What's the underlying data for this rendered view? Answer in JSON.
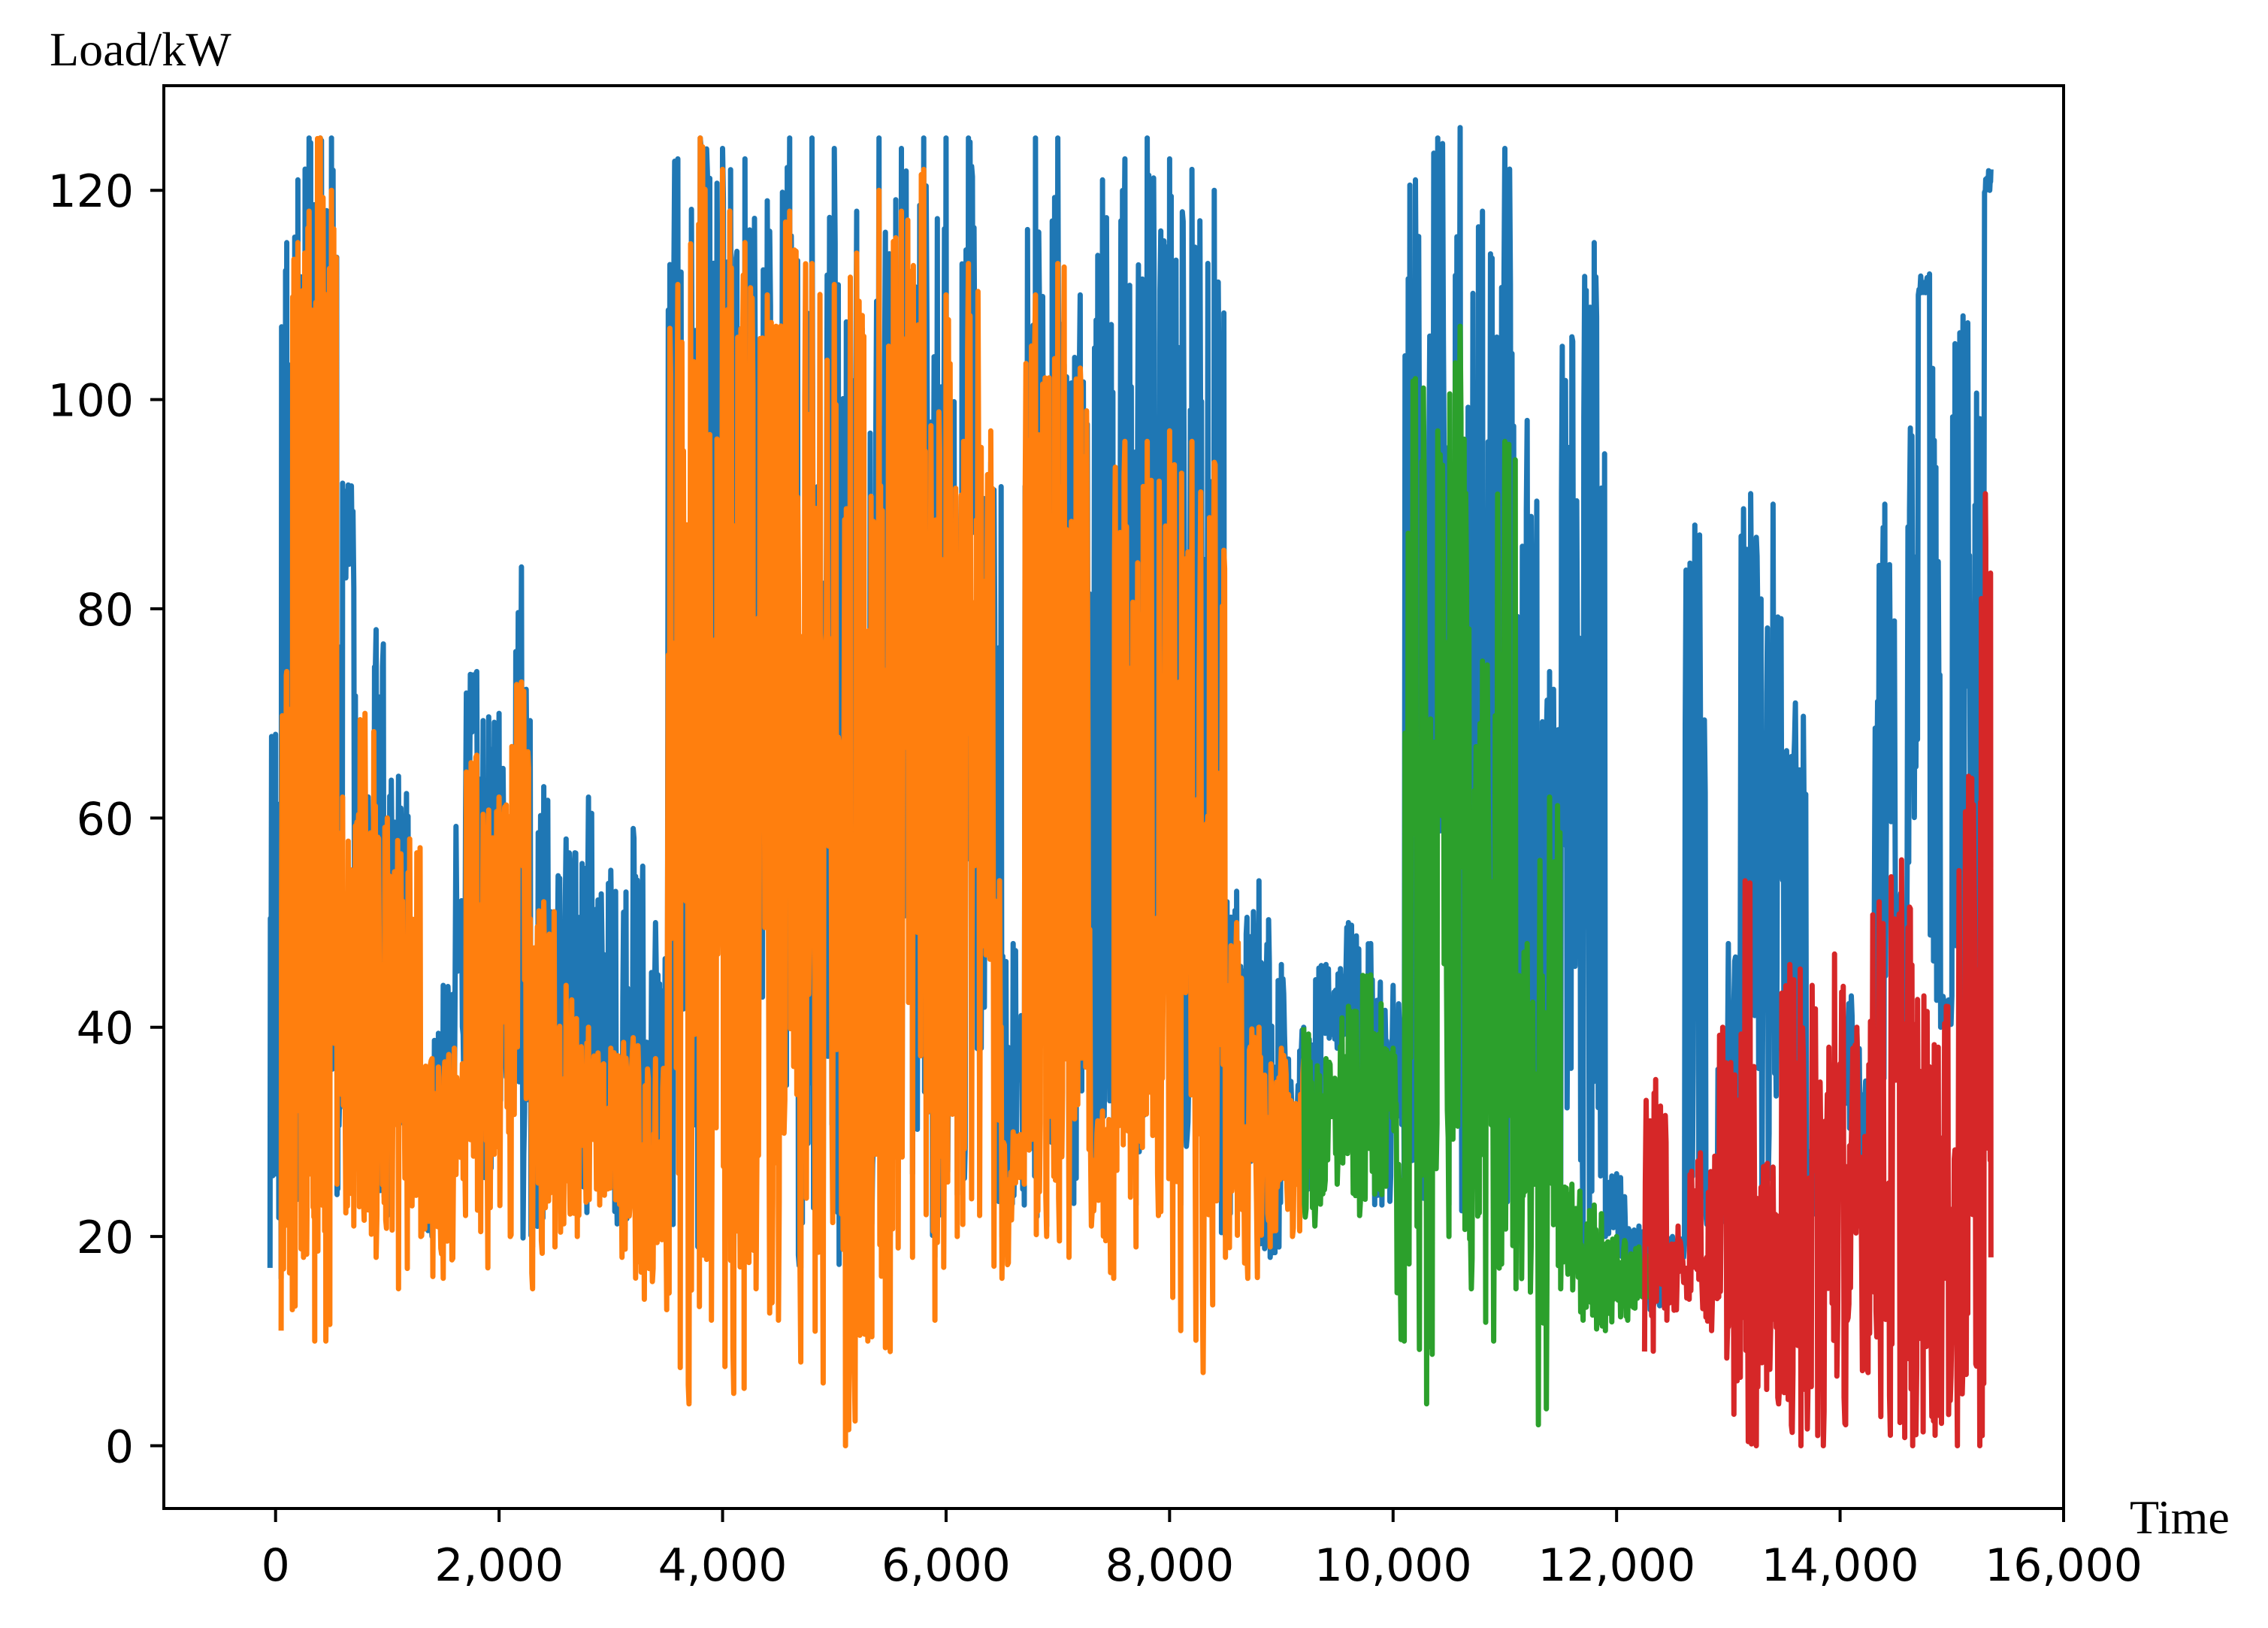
{
  "chart_data": {
    "type": "line",
    "title": "",
    "xlabel": "Time",
    "ylabel": "Load/kW",
    "xlim": [
      -1000,
      16000
    ],
    "ylim": [
      -6,
      130
    ],
    "x_ticks": [
      0,
      2000,
      4000,
      6000,
      8000,
      10000,
      12000,
      14000,
      16000
    ],
    "x_tick_labels": [
      "0",
      "2,000",
      "4,000",
      "6,000",
      "8,000",
      "10,000",
      "12,000",
      "14,000",
      "16,000"
    ],
    "y_ticks": [
      0,
      20,
      40,
      60,
      80,
      100,
      120
    ],
    "y_tick_labels": [
      "0",
      "20",
      "40",
      "60",
      "80",
      "100",
      "120"
    ],
    "grid": false,
    "legend": "none",
    "series": [
      {
        "color": "#1f77b4",
        "x": [
          -50,
          0,
          50,
          100,
          150,
          200,
          250,
          300,
          350,
          400,
          450,
          500,
          550,
          600,
          700,
          800,
          900,
          1000,
          1100,
          1200,
          1300,
          1400,
          1500,
          1600,
          1700,
          1800,
          1900,
          2000,
          2100,
          2200,
          2300,
          2400,
          2500,
          2600,
          2700,
          2800,
          2900,
          3000,
          3100,
          3200,
          3300,
          3400,
          3500,
          3600,
          3700,
          3800,
          3900,
          4000,
          4100,
          4200,
          4300,
          4400,
          4500,
          4600,
          4700,
          4800,
          4900,
          5000,
          5100,
          5200,
          5300,
          5400,
          5500,
          5600,
          5700,
          5800,
          5900,
          6000,
          6100,
          6200,
          6300,
          6400,
          6500,
          6600,
          6700,
          6800,
          6900,
          7000,
          7100,
          7200,
          7300,
          7400,
          7500,
          7600,
          7700,
          7800,
          7900,
          8000,
          8100,
          8200,
          8300,
          8400,
          8500,
          8600,
          8700,
          8800,
          8900,
          9000,
          9100,
          9200,
          9300,
          9400,
          9500,
          9600,
          9700,
          9800,
          9900,
          10000,
          10100,
          10200,
          10300,
          10400,
          10500,
          10600,
          10700,
          10800,
          10900,
          11000,
          11100,
          11200,
          11300,
          11400,
          11500,
          11600,
          11700,
          11800,
          11900,
          12000,
          12100,
          12200,
          12300,
          12400,
          12500,
          12600,
          12700,
          12800,
          12900,
          13000,
          13100,
          13200,
          13300,
          13400,
          13500,
          13600,
          13700,
          13800,
          13900,
          14000,
          14100,
          14200,
          14300,
          14400,
          14500,
          14600,
          14700,
          14800,
          14900,
          15000,
          15100,
          15200,
          15300,
          15350
        ],
        "y": [
          17,
          68,
          16,
          115,
          23,
          121,
          60,
          125,
          28,
          125,
          40,
          125,
          24,
          92,
          82,
          25,
          78,
          22,
          64,
          30,
          29,
          20,
          44,
          32,
          60,
          74,
          24,
          70,
          32,
          84,
          19,
          63,
          29,
          58,
          22,
          62,
          24,
          55,
          21,
          59,
          19,
          50,
          19,
          123,
          18,
          125,
          30,
          124,
          17,
          123,
          33,
          119,
          32,
          125,
          17,
          125,
          20,
          124,
          16,
          118,
          20,
          125,
          20,
          124,
          26,
          125,
          18,
          125,
          24,
          125,
          33,
          94,
          20,
          48,
          23,
          125,
          21,
          125,
          23,
          110,
          24,
          121,
          25,
          123,
          23,
          125,
          30,
          123,
          23,
          122,
          32,
          120,
          20,
          53,
          22,
          54,
          18,
          46,
          25,
          40,
          24,
          46,
          38,
          50,
          27,
          48,
          23,
          44,
          25,
          121,
          22,
          125,
          23,
          126,
          22,
          118,
          25,
          124,
          23,
          98,
          25,
          74,
          22,
          106,
          18,
          115,
          20,
          26,
          18,
          21,
          13,
          16,
          20,
          18,
          88,
          22,
          21,
          48,
          24,
          91,
          22,
          90,
          24,
          71,
          22,
          29,
          28,
          30,
          43,
          22,
          35,
          90,
          38,
          55,
          110,
          112,
          40,
          43,
          108,
          30,
          120,
          122
        ],
        "segments": [
          [
            -50,
            15350
          ]
        ]
      },
      {
        "color": "#ff7f0e",
        "x": [
          50,
          100,
          150,
          200,
          250,
          300,
          350,
          400,
          450,
          500,
          550,
          600,
          700,
          800,
          900,
          1000,
          1100,
          1200,
          1300,
          1400,
          1500,
          1600,
          1700,
          1800,
          1900,
          2000,
          2100,
          2200,
          2300,
          2400,
          2500,
          2600,
          2700,
          2800,
          2900,
          3000,
          3100,
          3200,
          3300,
          3400,
          3500,
          3600,
          3700,
          3800,
          3900,
          4000,
          4100,
          4200,
          4300,
          4400,
          4500,
          4600,
          4700,
          4800,
          4900,
          5000,
          5100,
          5200,
          5300,
          5400,
          5500,
          5600,
          5700,
          5800,
          5900,
          6000,
          6100,
          6200,
          6300,
          6400,
          6500,
          6600,
          6700,
          6800,
          6900,
          7000,
          7100,
          7200,
          7300,
          7400,
          7500,
          7600,
          7700,
          7800,
          7900,
          8000,
          8100,
          8200,
          8300,
          8400,
          8500,
          8600,
          8700,
          8800,
          8900,
          9000,
          9100,
          9200
        ],
        "y": [
          11,
          74,
          13,
          115,
          18,
          118,
          10,
          125,
          10,
          120,
          25,
          62,
          21,
          70,
          18,
          60,
          15,
          58,
          20,
          37,
          16,
          38,
          22,
          66,
          17,
          62,
          20,
          73,
          15,
          52,
          19,
          44,
          20,
          40,
          23,
          38,
          18,
          39,
          14,
          37,
          13,
          111,
          4,
          125,
          12,
          122,
          5,
          115,
          15,
          110,
          12,
          118,
          8,
          113,
          6,
          111,
          0,
          114,
          10,
          120,
          9,
          118,
          18,
          122,
          12,
          110,
          20,
          113,
          22,
          97,
          16,
          30,
          25,
          110,
          20,
          113,
          18,
          103,
          21,
          32,
          16,
          96,
          19,
          96,
          22,
          97,
          11,
          96,
          7,
          94,
          18,
          50,
          16,
          40,
          19,
          38,
          20,
          37
        ],
        "segments": [
          [
            50,
            9200
          ]
        ]
      },
      {
        "color": "#2ca02c",
        "x": [
          9200,
          9300,
          9400,
          9500,
          9600,
          9700,
          9800,
          9900,
          10000,
          10100,
          10200,
          10300,
          10400,
          10500,
          10600,
          10700,
          10800,
          10900,
          11000,
          11100,
          11200,
          11300,
          11400,
          11500,
          11600,
          11700,
          11800,
          11900,
          12000,
          12100,
          12200,
          12300
        ],
        "y": [
          40,
          21,
          37,
          25,
          42,
          22,
          45,
          24,
          38,
          10,
          102,
          4,
          97,
          20,
          107,
          15,
          75,
          10,
          96,
          15,
          48,
          2,
          62,
          15,
          25,
          12,
          23,
          11,
          20,
          12,
          19,
          14
        ],
        "segments": [
          [
            9200,
            12300
          ]
        ]
      },
      {
        "color": "#d62728",
        "x": [
          12250,
          12350,
          12450,
          12550,
          12650,
          12750,
          12850,
          12950,
          13050,
          13150,
          13250,
          13350,
          13450,
          13550,
          13650,
          13750,
          13850,
          13950,
          14050,
          14150,
          14250,
          14350,
          14450,
          14550,
          14650,
          14750,
          14850,
          14950,
          15050,
          15150,
          15250,
          15300,
          15350
        ],
        "y": [
          9,
          35,
          12,
          21,
          14,
          28,
          11,
          40,
          3,
          54,
          0,
          27,
          4,
          46,
          0,
          44,
          0,
          47,
          2,
          40,
          7,
          52,
          1,
          56,
          0,
          43,
          1,
          42,
          0,
          64,
          0,
          91,
          18
        ],
        "segments": [
          [
            12250,
            15350
          ]
        ]
      }
    ]
  }
}
